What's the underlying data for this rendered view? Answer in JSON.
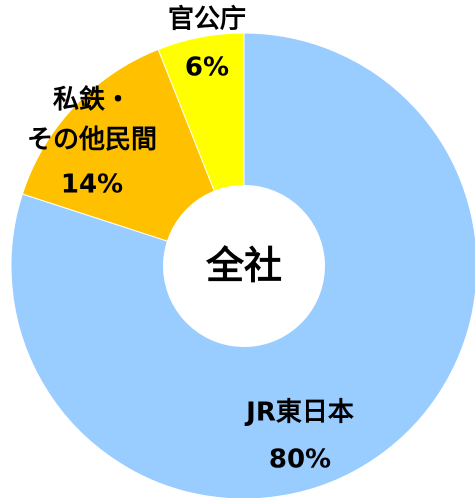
{
  "chart_data": {
    "type": "donut",
    "center_label": "全社",
    "categories": [
      "JR東日本",
      "私鉄・\nその他民間",
      "官公庁"
    ],
    "values": [
      80,
      14,
      6
    ],
    "value_labels": [
      "80%",
      "14%",
      "6%"
    ],
    "colors": [
      "#99ccff",
      "#ffc000",
      "#ffff00"
    ]
  }
}
